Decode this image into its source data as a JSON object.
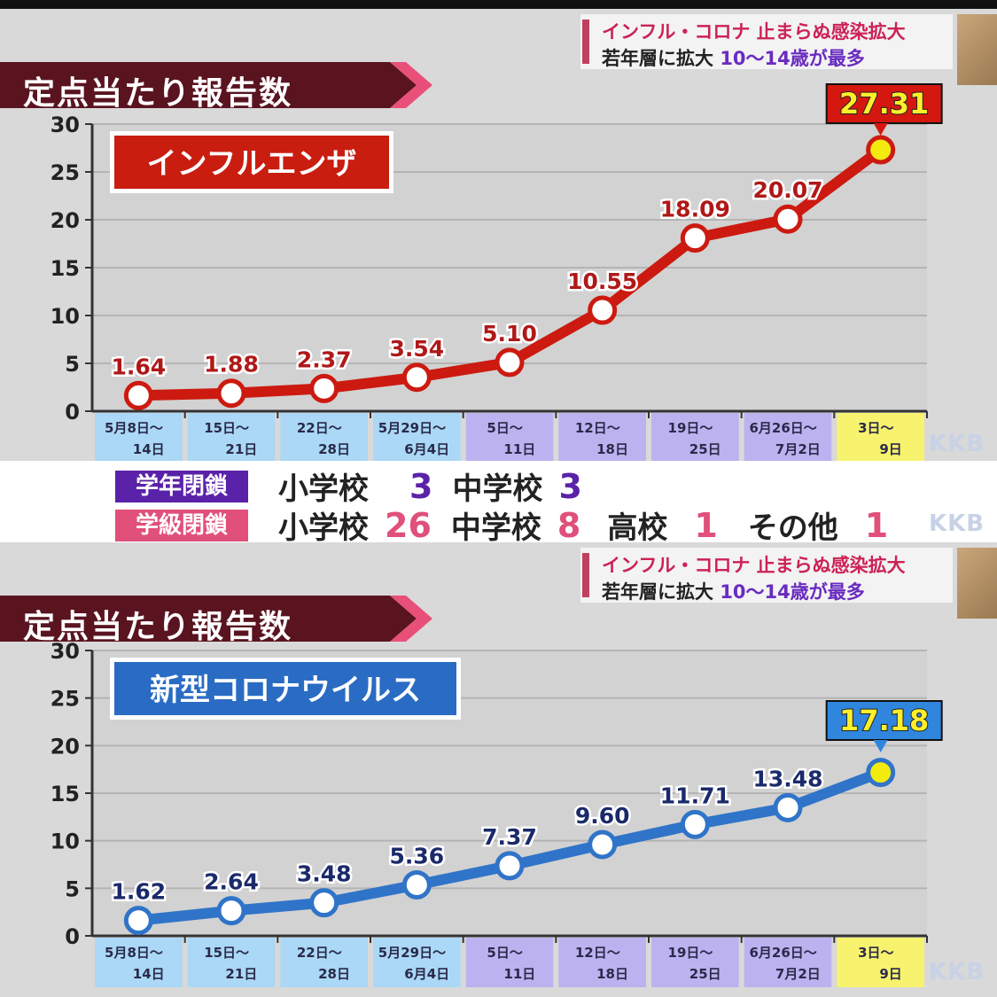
{
  "headline": {
    "line1": "インフル・コロナ 止まらぬ感染拡大",
    "line2_prefix": "若年層に拡大 ",
    "line2_highlight": "10～14歳が最多"
  },
  "watermark": "KKB",
  "chart_data": [
    {
      "type": "line",
      "title": "定点当たり報告数",
      "series_label": "インフルエンザ",
      "categories": [
        [
          "5月8日～",
          "14日"
        ],
        [
          "15日～",
          "21日"
        ],
        [
          "22日～",
          "28日"
        ],
        [
          "5月29日～",
          "6月4日"
        ],
        [
          "5日～",
          "11日"
        ],
        [
          "12日～",
          "18日"
        ],
        [
          "19日～",
          "25日"
        ],
        [
          "6月26日～",
          "7月2日"
        ],
        [
          "3日～",
          "9日"
        ]
      ],
      "values": [
        1.64,
        1.88,
        2.37,
        3.54,
        5.1,
        10.55,
        18.09,
        20.07,
        27.31
      ],
      "value_labels": [
        "1.64",
        "1.88",
        "2.37",
        "3.54",
        "5.10",
        "10.55",
        "18.09",
        "20.07",
        "27.31"
      ],
      "yticks": [
        "0",
        "5",
        "10",
        "15",
        "20",
        "25",
        "30"
      ],
      "ylim": [
        0,
        30
      ],
      "line_color": "#cc1a10",
      "label_color": "#b01818",
      "series_box_color": "#c91d10",
      "callout_color": "#d41810",
      "callout_text_color": "#ffef2a",
      "grid": true
    },
    {
      "type": "line",
      "title": "定点当たり報告数",
      "series_label": "新型コロナウイルス",
      "categories": [
        [
          "5月8日～",
          "14日"
        ],
        [
          "15日～",
          "21日"
        ],
        [
          "22日～",
          "28日"
        ],
        [
          "5月29日～",
          "6月4日"
        ],
        [
          "5日～",
          "11日"
        ],
        [
          "12日～",
          "18日"
        ],
        [
          "19日～",
          "25日"
        ],
        [
          "6月26日～",
          "7月2日"
        ],
        [
          "3日～",
          "9日"
        ]
      ],
      "values": [
        1.62,
        2.64,
        3.48,
        5.36,
        7.37,
        9.6,
        11.71,
        13.48,
        17.18
      ],
      "value_labels": [
        "1.62",
        "2.64",
        "3.48",
        "5.36",
        "7.37",
        "9.60",
        "11.71",
        "13.48",
        "17.18"
      ],
      "yticks": [
        "0",
        "5",
        "10",
        "15",
        "20",
        "25",
        "30"
      ],
      "ylim": [
        0,
        30
      ],
      "line_color": "#2f74c8",
      "label_color": "#1a2a6a",
      "series_box_color": "#2a6cc4",
      "callout_color": "#2f86dc",
      "callout_text_color": "#ffef2a",
      "grid": true
    }
  ],
  "closures": {
    "grade": {
      "tag": "学年閉鎖",
      "items": [
        {
          "label": "小学校",
          "count": "3"
        },
        {
          "label": "中学校",
          "count": "3"
        }
      ]
    },
    "class": {
      "tag": "学級閉鎖",
      "items": [
        {
          "label": "小学校",
          "count": "26"
        },
        {
          "label": "中学校",
          "count": "8"
        },
        {
          "label": "高校",
          "count": "1"
        },
        {
          "label": "その他",
          "count": "1"
        }
      ]
    }
  }
}
